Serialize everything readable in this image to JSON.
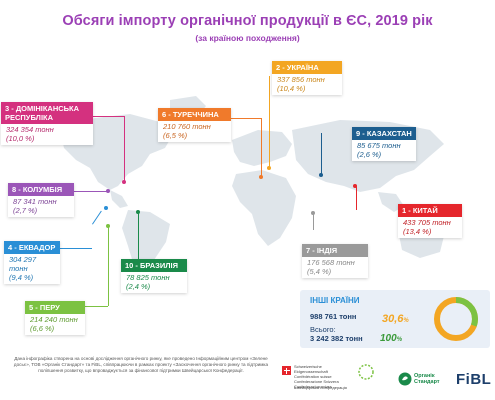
{
  "header": {
    "title": "Обсяги імпорту органічної  продукції в ЄС, 2019 рік",
    "subtitle": "(за країною походження)"
  },
  "countries": {
    "ukraine": {
      "label": "2 - УКРАЇНА",
      "value": "337 856 тонн",
      "share": "(10,4 %)",
      "color": "#f3a623"
    },
    "dominican": {
      "label": "3 - ДОМІНІКАНСЬКА РЕСПУБЛІКА",
      "value": "324 354 тонн",
      "share": "(10,0 %)",
      "color": "#d4317f"
    },
    "turkey": {
      "label": "6 - ТУРЕЧЧИНА",
      "value": "210 760 тонн",
      "share": "(6,5 %)",
      "color": "#f07a2b"
    },
    "kazakhstan": {
      "label": "9 - КАЗАХСТАН",
      "value": "85 675 тонн",
      "share": "(2,6 %)",
      "color": "#1d5e8f"
    },
    "colombia": {
      "label": "8 - КОЛУМБІЯ",
      "value": "87 341 тонн",
      "share": "(2,7 %)",
      "color": "#9b56b8"
    },
    "china": {
      "label": "1 - КИТАЙ",
      "value": "433 705 тонн",
      "share": "(13,4 %)",
      "color": "#e5262c"
    },
    "india": {
      "label": "7 - ІНДІЯ",
      "value": "176 568 тонн",
      "share": "(5,4 %)",
      "color": "#9a9a9a"
    },
    "ecuador": {
      "label": "4 - ЕКВАДОР",
      "value": "304 297 тонн",
      "share": "(9,4 %)",
      "color": "#2a8fd6"
    },
    "brazil": {
      "label": "10 - БРАЗИЛІЯ",
      "value": "78 825 тонн",
      "share": "(2,4 %)",
      "color": "#1a8a4a"
    },
    "peru": {
      "label": "5 - ПЕРУ",
      "value": "214 240 тонн",
      "share": "(6,6 %)",
      "color": "#7cc242"
    }
  },
  "summary": {
    "other_label": "ІНШІ КРАЇНИ",
    "other_value": "988 761 тонн",
    "other_pct": "30,6",
    "other_pct_sign": "%",
    "other_fraction": 0.306,
    "total_label": "Всього:",
    "total_value": "3 242 382 тонн",
    "total_pct": "100",
    "total_pct_sign": "%",
    "colors": {
      "other": "#7cc242",
      "rest": "#f3a623",
      "panel": "#e9eff7",
      "heading": "#2a8fd6"
    }
  },
  "footer": {
    "text": "Дана інфографіка створена на основі дослідження органічного ринку, яке проведено Інформаційним центром «Зелене досьє», ТОВ «Органік Стандарт» та FiBL, співпрацюючи в рамках проекту «Заохочення органічного ринку та підтримка поліпшення розвитку, що впроваджується за фінансової підтримки Швейцарської Конфедерації.",
    "logos": {
      "swiss": "Schweizerische Eidgenossenschaft Confédération suisse Confederazione Svizzera Confederaziun svizra",
      "swiss_sub": "Швейцарська Конфедерація",
      "organic_standard": "Органік Стандарт",
      "fibl": "FiBL"
    }
  }
}
